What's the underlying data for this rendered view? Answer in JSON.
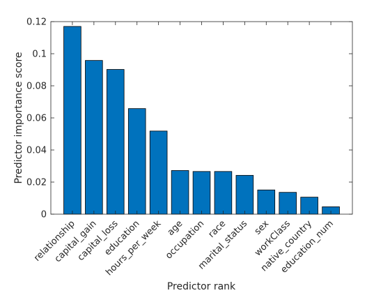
{
  "chart_data": {
    "type": "bar",
    "title": "",
    "xlabel": "Predictor rank",
    "ylabel": "Predictor importance score",
    "categories": [
      "relationship",
      "capital_gain",
      "capital_loss",
      "education",
      "hours_per_week",
      "age",
      "occupation",
      "race",
      "marital_status",
      "sex",
      "workClass",
      "native_country",
      "education_num"
    ],
    "values": [
      0.117,
      0.0958,
      0.0902,
      0.0658,
      0.0518,
      0.0272,
      0.0266,
      0.0266,
      0.0242,
      0.0151,
      0.0136,
      0.0106,
      0.0046
    ],
    "ylim": [
      0,
      0.12
    ],
    "yticks": [
      0,
      0.02,
      0.04,
      0.06,
      0.08,
      0.1,
      0.12
    ],
    "ytick_labels": [
      "0",
      "0.02",
      "0.04",
      "0.06",
      "0.08",
      "0.1",
      "0.12"
    ],
    "bar_color": "#0072bd",
    "bar_edge_color": "#000000",
    "axis_color": "#262626",
    "grid": false
  }
}
